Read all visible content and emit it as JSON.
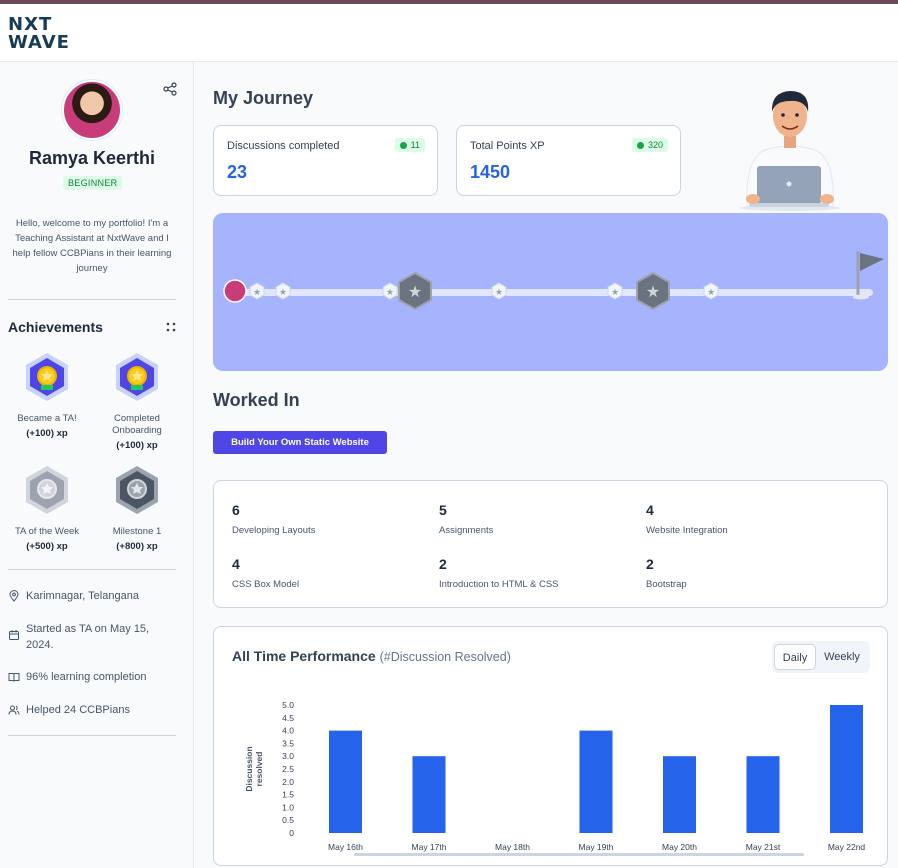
{
  "brand": {
    "logo_line1": "NXT",
    "logo_line2": "WAVE"
  },
  "profile": {
    "name": "Ramya Keerthi",
    "level": "BEGINNER",
    "bio": "Hello, welcome to my portfolio! I'm a Teaching Assistant at NxtWave and I help fellow CCBPians in their learning journey"
  },
  "achievements": {
    "title": "Achievements",
    "items": [
      {
        "label": "Became a TA!",
        "xp": "(+100) xp",
        "icon": "gold-medal-badge-icon"
      },
      {
        "label": "Completed Onboarding",
        "xp": "(+100) xp",
        "icon": "gold-medal-badge-icon"
      },
      {
        "label": "TA of the Week",
        "xp": "(+500) xp",
        "icon": "locked-badge-icon"
      },
      {
        "label": "Milestone 1",
        "xp": "(+800) xp",
        "icon": "locked-badge-icon"
      }
    ]
  },
  "info": [
    {
      "icon": "location-icon",
      "text": "Karimnagar, Telangana"
    },
    {
      "icon": "calendar-icon",
      "text": "Started as TA on May 15, 2024."
    },
    {
      "icon": "book-icon",
      "text": "96% learning completion"
    },
    {
      "icon": "users-icon",
      "text": "Helped 24 CCBPians"
    }
  ],
  "journey": {
    "title": "My Journey",
    "stats": [
      {
        "label": "Discussions completed",
        "value": "23",
        "badge": "11"
      },
      {
        "label": "Total Points XP",
        "value": "1450",
        "badge": "320"
      }
    ]
  },
  "worked": {
    "title": "Worked In",
    "course": "Build Your Own Static Website",
    "items": [
      {
        "count": "6",
        "label": "Developing Layouts"
      },
      {
        "count": "5",
        "label": "Assignments"
      },
      {
        "count": "4",
        "label": "Website Integration"
      },
      {
        "count": "4",
        "label": "CSS Box Model"
      },
      {
        "count": "2",
        "label": "Introduction to HTML & CSS"
      },
      {
        "count": "2",
        "label": "Bootstrap"
      }
    ]
  },
  "performance": {
    "title": "All Time Performance",
    "subtitle": "(#Discussion Resolved)",
    "toggle": {
      "daily": "Daily",
      "weekly": "Weekly",
      "selected": "Daily"
    }
  },
  "colors": {
    "accent": "#2563eb",
    "button": "#4f46e5",
    "journey_bg": "#a5b4fc"
  },
  "chart_data": {
    "type": "bar",
    "categories": [
      "May 16th",
      "May 17th",
      "May 18th",
      "May 19th",
      "May 20th",
      "May 21st",
      "May 22nd"
    ],
    "values": [
      4,
      3,
      0,
      4,
      3,
      3,
      5
    ],
    "ylabel": "Discussion resolved",
    "yticks": [
      "0",
      "0.5",
      "1.0",
      "1.5",
      "2.0",
      "2.5",
      "3.0",
      "3.5",
      "4.0",
      "4.5",
      "5.0"
    ],
    "ylim": [
      0,
      5
    ],
    "grid": false,
    "color": "#2563eb"
  }
}
